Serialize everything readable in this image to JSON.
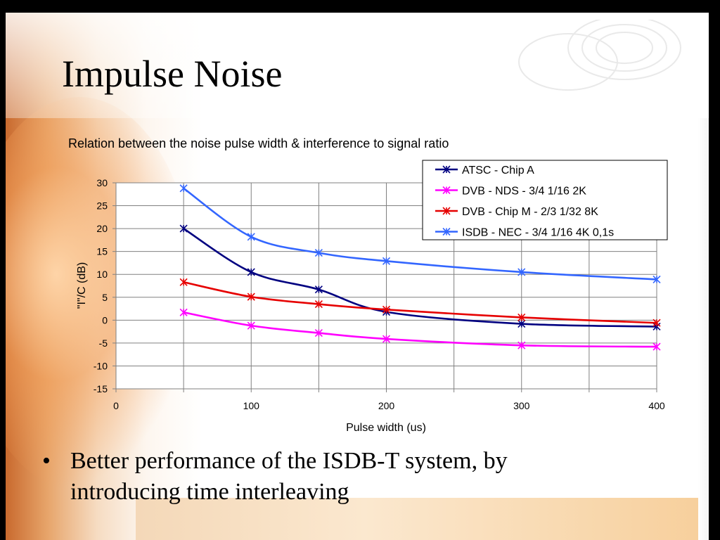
{
  "slide": {
    "title": "Impulse Noise",
    "bullet_marker": "•",
    "bullet_text": "Better performance of the ISDB-T system, by introducing time interleaving"
  },
  "chart_data": {
    "type": "line",
    "title": "Relation between the noise pulse width & interference to signal ratio",
    "xlabel": "Pulse width (us)",
    "ylabel": "\"I\"/C (dB)",
    "xlim": [
      0,
      400
    ],
    "ylim": [
      -15,
      30
    ],
    "xticks": [
      0,
      100,
      200,
      300,
      400
    ],
    "yticks": [
      30,
      25,
      20,
      15,
      10,
      5,
      0,
      -5,
      -10,
      -15
    ],
    "grid": true,
    "legend_position": "top-right",
    "x": [
      50,
      100,
      150,
      200,
      300,
      400
    ],
    "series": [
      {
        "name": "ATSC - Chip A",
        "color": "#000080",
        "values": [
          20.0,
          10.5,
          6.7,
          1.8,
          -0.8,
          -1.4
        ]
      },
      {
        "name": "DVB - NDS - 3/4 1/16 2K",
        "color": "#ff00ff",
        "values": [
          1.7,
          -1.2,
          -2.8,
          -4.1,
          -5.5,
          -5.8
        ]
      },
      {
        "name": "DVB - Chip M - 2/3 1/32 8K",
        "color": "#e60000",
        "values": [
          8.3,
          5.1,
          3.5,
          2.3,
          0.6,
          -0.6
        ]
      },
      {
        "name": "ISDB - NEC - 3/4 1/16 4K 0,1s",
        "color": "#3366ff",
        "values": [
          28.8,
          18.2,
          14.7,
          12.9,
          10.5,
          8.9
        ]
      }
    ]
  }
}
